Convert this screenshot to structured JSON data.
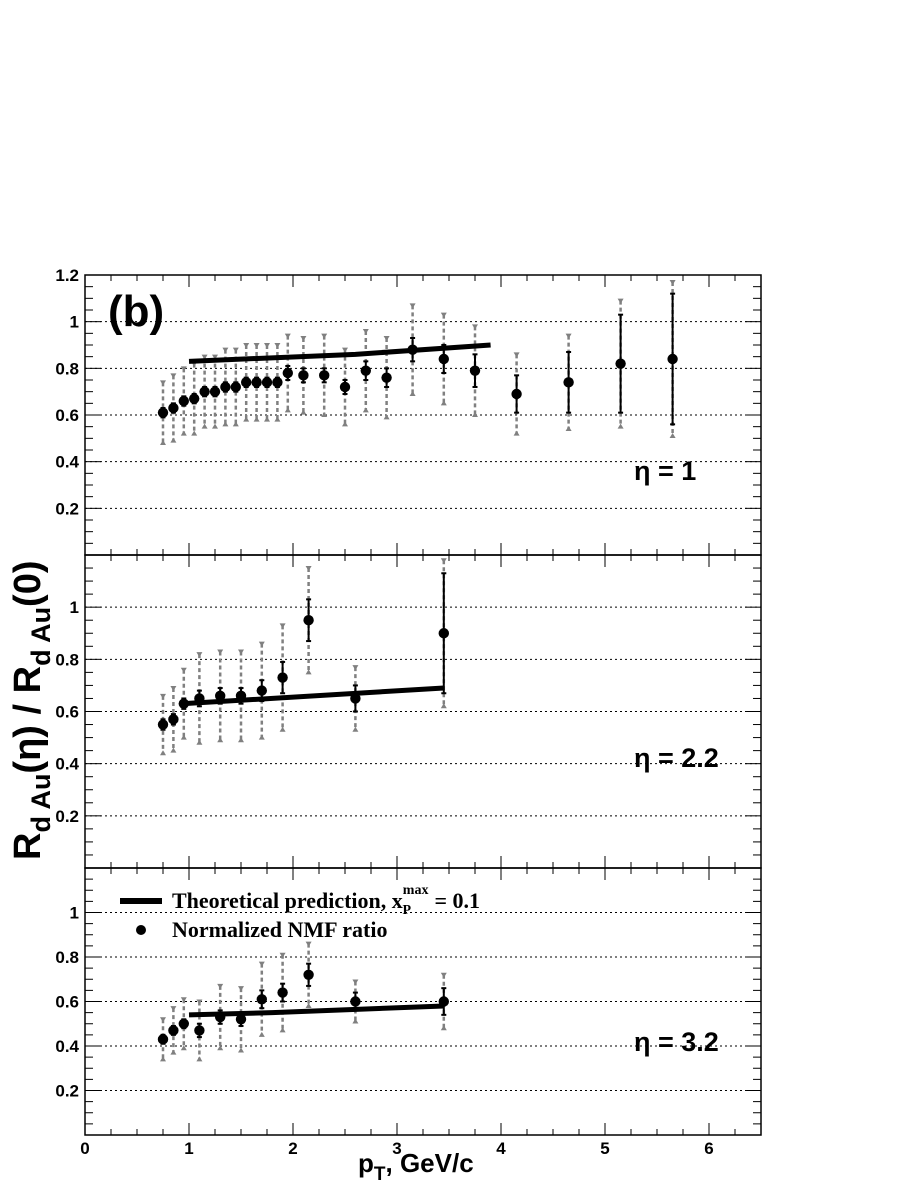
{
  "figure": {
    "panel_tag": "(b)",
    "y_axis_title": {
      "pre": "R",
      "sub1": "d Au",
      "mid": "(η) / R",
      "sub2": "d Au",
      "post": "(0)"
    },
    "x_axis_title": {
      "pre": "p",
      "sub": "T",
      "post": ", GeV/c"
    },
    "legend": {
      "line_label": {
        "pre": "Theoretical prediction, x",
        "sup": "max",
        "sub": "P",
        "post": " = 0.1"
      },
      "dot_label": "Normalized NMF ratio"
    },
    "x_ticks": [
      "0",
      "1",
      "2",
      "3",
      "4",
      "5",
      "6"
    ]
  },
  "colors": {
    "points": "#000000",
    "stat_error": "#000000",
    "syst_error": "#808080",
    "theory": "#000000",
    "grid": "#000000"
  },
  "chart_data": [
    {
      "type": "scatter",
      "panel": "top",
      "annotation": "η = 1",
      "xlim": [
        0,
        6.5
      ],
      "ylim": [
        0,
        1.2
      ],
      "y_ticks": [
        "0.2",
        "0.4",
        "0.6",
        "0.8",
        "1",
        "1.2"
      ],
      "grid": "horizontal dotted",
      "series": [
        {
          "kind": "points",
          "x": [
            0.75,
            0.85,
            0.95,
            1.05,
            1.15,
            1.25,
            1.35,
            1.45,
            1.55,
            1.65,
            1.75,
            1.85,
            1.95,
            2.1,
            2.3,
            2.5,
            2.7,
            2.9,
            3.15,
            3.45,
            3.75,
            4.15,
            4.65,
            5.15,
            5.65
          ],
          "y": [
            0.61,
            0.63,
            0.66,
            0.67,
            0.7,
            0.7,
            0.72,
            0.72,
            0.74,
            0.74,
            0.74,
            0.74,
            0.78,
            0.77,
            0.77,
            0.72,
            0.79,
            0.76,
            0.88,
            0.84,
            0.79,
            0.69,
            0.74,
            0.82,
            0.84
          ],
          "stat_error": [
            0.02,
            0.02,
            0.02,
            0.02,
            0.02,
            0.02,
            0.02,
            0.02,
            0.02,
            0.02,
            0.02,
            0.02,
            0.03,
            0.03,
            0.03,
            0.03,
            0.04,
            0.04,
            0.05,
            0.06,
            0.07,
            0.08,
            0.13,
            0.21,
            0.28
          ],
          "syst_error": [
            0.13,
            0.14,
            0.14,
            0.15,
            0.15,
            0.15,
            0.16,
            0.16,
            0.16,
            0.16,
            0.16,
            0.16,
            0.16,
            0.16,
            0.17,
            0.16,
            0.17,
            0.17,
            0.19,
            0.19,
            0.19,
            0.17,
            0.2,
            0.27,
            0.33
          ]
        },
        {
          "kind": "line",
          "x": [
            1.0,
            2.6,
            3.9
          ],
          "y": [
            0.83,
            0.86,
            0.9
          ]
        }
      ]
    },
    {
      "type": "scatter",
      "panel": "middle",
      "annotation": "η = 2.2",
      "xlim": [
        0,
        6.5
      ],
      "ylim": [
        0,
        1.2
      ],
      "y_ticks": [
        "0.2",
        "0.4",
        "0.6",
        "0.8",
        "1"
      ],
      "grid": "horizontal dotted",
      "series": [
        {
          "kind": "points",
          "x": [
            0.75,
            0.85,
            0.95,
            1.1,
            1.3,
            1.5,
            1.7,
            1.9,
            2.15,
            2.6,
            3.45
          ],
          "y": [
            0.55,
            0.57,
            0.63,
            0.65,
            0.66,
            0.66,
            0.68,
            0.73,
            0.95,
            0.65,
            0.9
          ],
          "stat_error": [
            0.02,
            0.02,
            0.02,
            0.03,
            0.03,
            0.03,
            0.04,
            0.06,
            0.08,
            0.05,
            0.23
          ],
          "syst_error": [
            0.11,
            0.12,
            0.13,
            0.17,
            0.17,
            0.17,
            0.18,
            0.2,
            0.2,
            0.12,
            0.28
          ]
        },
        {
          "kind": "line",
          "x": [
            0.95,
            3.45
          ],
          "y": [
            0.63,
            0.69
          ]
        }
      ]
    },
    {
      "type": "scatter",
      "panel": "bottom",
      "annotation": "η = 3.2",
      "xlim": [
        0,
        6.5
      ],
      "ylim": [
        0,
        1.2
      ],
      "y_ticks": [
        "0.2",
        "0.4",
        "0.6",
        "0.8",
        "1"
      ],
      "grid": "horizontal dotted",
      "series": [
        {
          "kind": "points",
          "x": [
            0.75,
            0.85,
            0.95,
            1.1,
            1.3,
            1.5,
            1.7,
            1.9,
            2.15,
            2.6,
            3.45
          ],
          "y": [
            0.43,
            0.47,
            0.5,
            0.47,
            0.53,
            0.52,
            0.61,
            0.64,
            0.72,
            0.6,
            0.6
          ],
          "stat_error": [
            0.02,
            0.02,
            0.02,
            0.03,
            0.03,
            0.03,
            0.04,
            0.04,
            0.05,
            0.04,
            0.06
          ],
          "syst_error": [
            0.09,
            0.1,
            0.11,
            0.13,
            0.14,
            0.14,
            0.16,
            0.17,
            0.14,
            0.09,
            0.12
          ]
        },
        {
          "kind": "line",
          "x": [
            1.0,
            1.8,
            3.45
          ],
          "y": [
            0.54,
            0.55,
            0.58
          ]
        }
      ]
    }
  ]
}
